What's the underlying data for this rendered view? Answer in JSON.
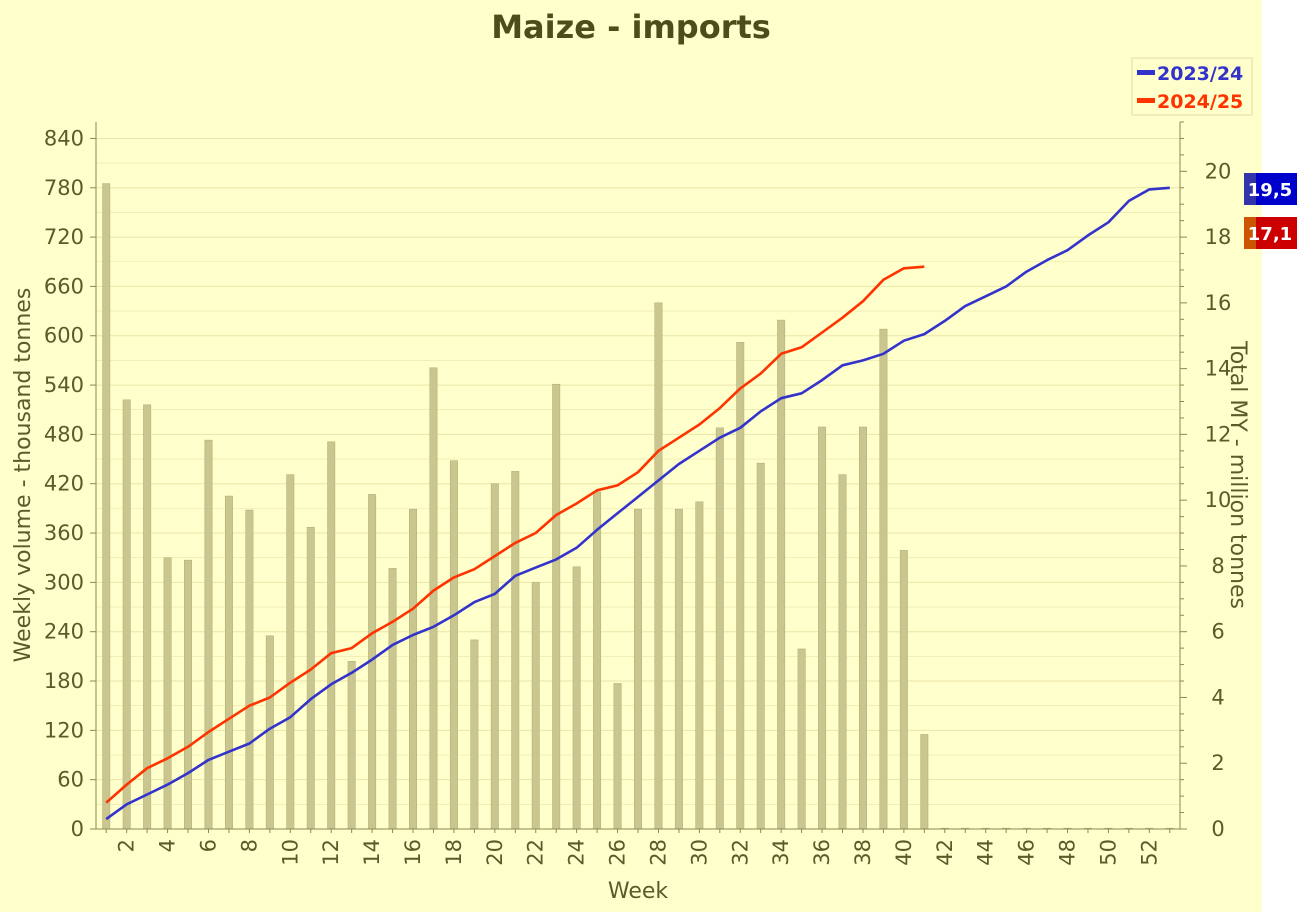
{
  "chart_data": {
    "type": "bar",
    "title": "Maize - imports",
    "xlabel": "Week",
    "ylabel": "Weekly volume - thousand tonnes",
    "ylabel_right": "Total MY - million tonnes",
    "ylim": [
      0,
      860
    ],
    "ylim_right": [
      0,
      21.5
    ],
    "yticks": [
      0,
      60,
      120,
      180,
      240,
      300,
      360,
      420,
      480,
      540,
      600,
      660,
      720,
      780,
      840
    ],
    "yticks_right": [
      0,
      2,
      4,
      6,
      8,
      10,
      12,
      14,
      16,
      18,
      20
    ],
    "xticks": [
      2,
      4,
      6,
      8,
      10,
      12,
      14,
      16,
      18,
      20,
      22,
      24,
      26,
      28,
      30,
      32,
      34,
      36,
      38,
      40,
      42,
      44,
      46,
      48,
      50,
      52
    ],
    "weeks": [
      1,
      2,
      3,
      4,
      5,
      6,
      7,
      8,
      9,
      10,
      11,
      12,
      13,
      14,
      15,
      16,
      17,
      18,
      19,
      20,
      21,
      22,
      23,
      24,
      25,
      26,
      27,
      28,
      29,
      30,
      31,
      32,
      33,
      34,
      35,
      36,
      37,
      38,
      39,
      40,
      41,
      42,
      43,
      44,
      45,
      46,
      47,
      48,
      49,
      50,
      51,
      52,
      53
    ],
    "bars": {
      "name": "Weekly volume",
      "color": "#c9c68f",
      "values": [
        785,
        522,
        516,
        330,
        327,
        473,
        405,
        388,
        235,
        431,
        367,
        471,
        204,
        407,
        317,
        389,
        561,
        448,
        230,
        420,
        435,
        300,
        541,
        319,
        410,
        177,
        389,
        640,
        389,
        398,
        488,
        592,
        445,
        619,
        219,
        489,
        431,
        489,
        608,
        339,
        115,
        0,
        0,
        0,
        0,
        0,
        0,
        0,
        0,
        0,
        0,
        0,
        0
      ]
    },
    "series": [
      {
        "name": "2023/24",
        "color": "#3333cc",
        "values": [
          0.3,
          0.75,
          1.05,
          1.35,
          1.7,
          2.1,
          2.35,
          2.6,
          3.05,
          3.4,
          3.95,
          4.4,
          4.75,
          5.15,
          5.6,
          5.9,
          6.15,
          6.5,
          6.9,
          7.15,
          7.7,
          7.95,
          8.2,
          8.55,
          9.1,
          9.6,
          10.1,
          10.6,
          11.1,
          11.5,
          11.9,
          12.2,
          12.7,
          13.1,
          13.25,
          13.65,
          14.1,
          14.25,
          14.45,
          14.85,
          15.05,
          15.45,
          15.9,
          16.2,
          16.5,
          16.95,
          17.3,
          17.6,
          18.05,
          18.45,
          19.1,
          19.45,
          19.5
        ]
      },
      {
        "name": "2024/25",
        "color": "#ff3300",
        "values": [
          0.8,
          1.35,
          1.85,
          2.15,
          2.5,
          2.95,
          3.35,
          3.75,
          4.0,
          4.45,
          4.85,
          5.35,
          5.5,
          5.95,
          6.3,
          6.7,
          7.25,
          7.65,
          7.9,
          8.3,
          8.7,
          9.0,
          9.55,
          9.9,
          10.3,
          10.45,
          10.85,
          11.5,
          11.9,
          12.3,
          12.8,
          13.4,
          13.85,
          14.45,
          14.65,
          15.1,
          15.55,
          16.05,
          16.7,
          17.05,
          17.1
        ]
      }
    ],
    "legend": {
      "placement": "top-right",
      "entries": [
        "2023/24",
        "2024/25"
      ]
    },
    "end_badges": [
      {
        "label": "19,5",
        "color": "#0000cc"
      },
      {
        "label": "17,1",
        "color": "#cc0000"
      }
    ],
    "grid": true,
    "background_color": "#ffffcc",
    "plot_background_color": "#ffffcc",
    "grid_color": "#e8e6a8",
    "text_color": "#5b5a2a"
  }
}
